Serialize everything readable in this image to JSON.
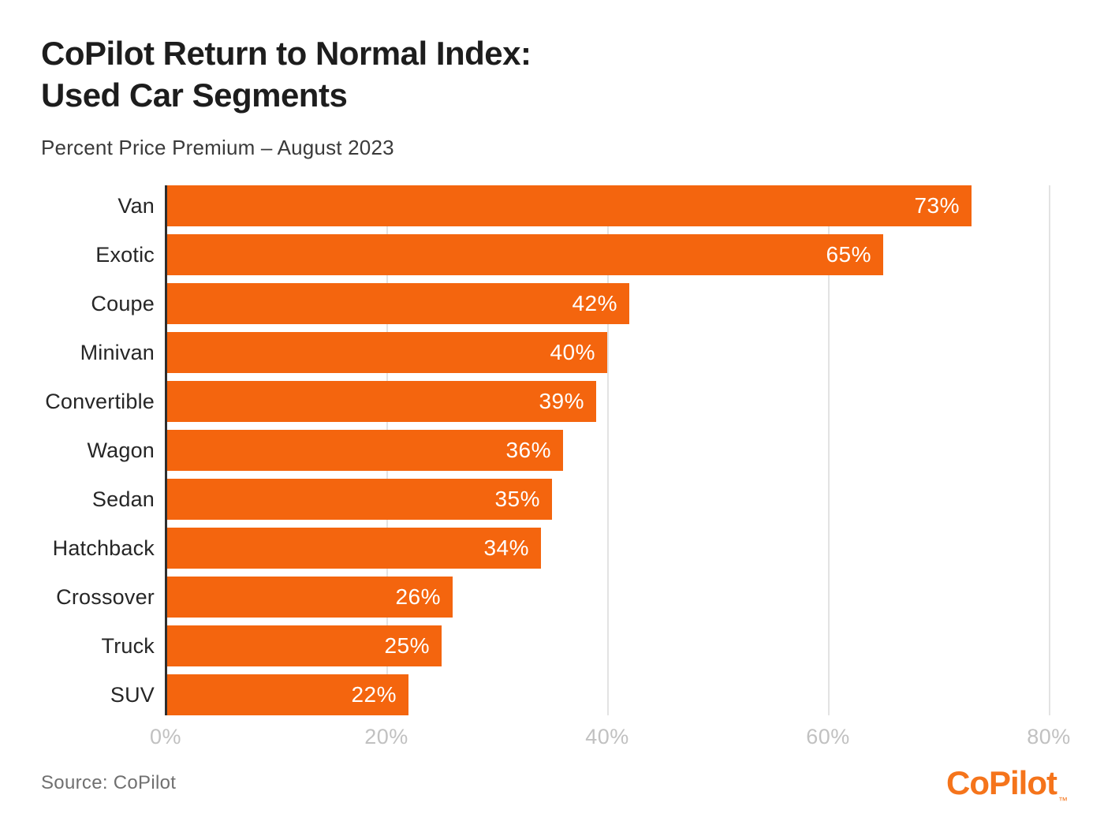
{
  "header": {
    "title_line1": "CoPilot Return to Normal Index:",
    "title_line2": "Used Car Segments",
    "subtitle": "Percent Price Premium – August 2023"
  },
  "footer": {
    "source": "Source: CoPilot",
    "logo_text": "CoPilot",
    "logo_tm": "™"
  },
  "colors": {
    "bar": "#F4650E",
    "logo": "#F5741B",
    "gridline": "#E3E3E3",
    "axis_line": "#2E2E2E",
    "tick_label": "#C1C1C1",
    "category_label": "#262626",
    "value_label": "#FFFFFF",
    "title": "#1D1D1D",
    "subtitle": "#3A3A3A",
    "source": "#707070"
  },
  "chart_data": {
    "type": "bar",
    "orientation": "horizontal",
    "title": "CoPilot Return to Normal Index: Used Car Segments",
    "subtitle": "Percent Price Premium – August 2023",
    "categories": [
      "Van",
      "Exotic",
      "Coupe",
      "Minivan",
      "Convertible",
      "Wagon",
      "Sedan",
      "Hatchback",
      "Crossover",
      "Truck",
      "SUV"
    ],
    "values": [
      73,
      65,
      42,
      40,
      39,
      36,
      35,
      34,
      26,
      25,
      22
    ],
    "value_labels": [
      "73%",
      "65%",
      "42%",
      "40%",
      "39%",
      "36%",
      "35%",
      "34%",
      "26%",
      "25%",
      "22%"
    ],
    "xlabel": "",
    "ylabel": "",
    "xlim": [
      0,
      80
    ],
    "x_tick_values": [
      0,
      20,
      40,
      60,
      80
    ],
    "x_tick_labels": [
      "0%",
      "20%",
      "40%",
      "60%",
      "80%"
    ],
    "grid": true,
    "legend": false,
    "bar_label_position": "inside-end"
  }
}
